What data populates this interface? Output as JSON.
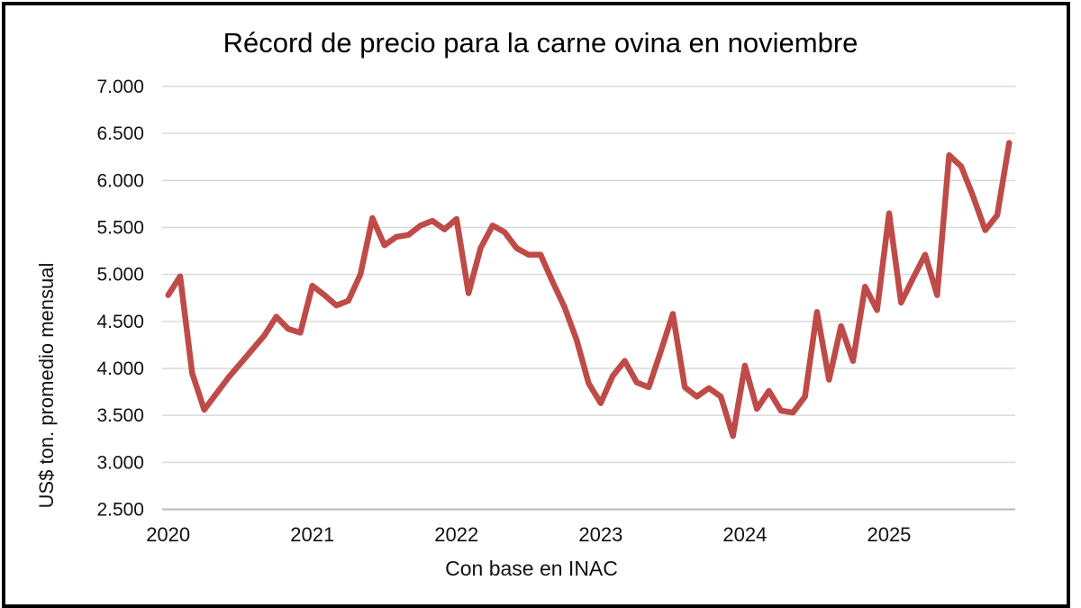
{
  "chart": {
    "title": "Récord de precio para la carne ovina en noviembre",
    "ylabel": "US$ ton. promedio mensual",
    "caption": "Con base en INAC"
  },
  "colors": {
    "line": "#be4b48",
    "gridline": "#d9d9d9",
    "axisline": "#bfbfbf",
    "text": "#111111",
    "frame": "#000000",
    "background": "#ffffff"
  },
  "chart_data": {
    "type": "line",
    "title": "Récord de precio para la carne ovina en noviembre",
    "xlabel": "Con base en INAC",
    "ylabel": "US$ ton. promedio mensual",
    "grid": "horizontal",
    "legend": false,
    "ylim": [
      2500,
      7000
    ],
    "y_tick_step": 500,
    "y_tick_labels": [
      "2.500",
      "3.000",
      "3.500",
      "4.000",
      "4.500",
      "5.000",
      "5.500",
      "6.000",
      "6.500",
      "7.000"
    ],
    "x_tick_labels": [
      "2020",
      "2021",
      "2022",
      "2023",
      "2024",
      "2025"
    ],
    "x": [
      "2020-01",
      "2020-02",
      "2020-03",
      "2020-04",
      "2020-05",
      "2020-06",
      "2020-07",
      "2020-08",
      "2020-09",
      "2020-10",
      "2020-11",
      "2020-12",
      "2021-01",
      "2021-02",
      "2021-03",
      "2021-04",
      "2021-05",
      "2021-06",
      "2021-07",
      "2021-08",
      "2021-09",
      "2021-10",
      "2021-11",
      "2021-12",
      "2022-01",
      "2022-02",
      "2022-03",
      "2022-04",
      "2022-05",
      "2022-06",
      "2022-07",
      "2022-08",
      "2022-09",
      "2022-10",
      "2022-11",
      "2022-12",
      "2023-01",
      "2023-02",
      "2023-03",
      "2023-04",
      "2023-05",
      "2023-06",
      "2023-07",
      "2023-08",
      "2023-09",
      "2023-10",
      "2023-11",
      "2023-12",
      "2024-01",
      "2024-02",
      "2024-03",
      "2024-04",
      "2024-05",
      "2024-06",
      "2024-07",
      "2024-08",
      "2024-09",
      "2024-10",
      "2024-11",
      "2024-12",
      "2025-01",
      "2025-02",
      "2025-03",
      "2025-04",
      "2025-05",
      "2025-06",
      "2025-07",
      "2025-08",
      "2025-09",
      "2025-10",
      "2025-11"
    ],
    "values": [
      4780,
      4980,
      3950,
      3560,
      3730,
      3900,
      4050,
      4200,
      4350,
      4550,
      4420,
      4380,
      4880,
      4780,
      4670,
      4720,
      5000,
      5600,
      5310,
      5400,
      5420,
      5520,
      5570,
      5480,
      5590,
      4800,
      5280,
      5520,
      5450,
      5280,
      5210,
      5210,
      4920,
      4650,
      4300,
      3840,
      3630,
      3920,
      4080,
      3850,
      3800,
      4180,
      4580,
      3800,
      3700,
      3790,
      3700,
      3280,
      4030,
      3570,
      3760,
      3550,
      3530,
      3700,
      4600,
      3880,
      4450,
      4080,
      4870,
      4620,
      5650,
      4700,
      4960,
      5210,
      4780,
      6270,
      6150,
      5830,
      5470,
      5630,
      6400
    ]
  }
}
